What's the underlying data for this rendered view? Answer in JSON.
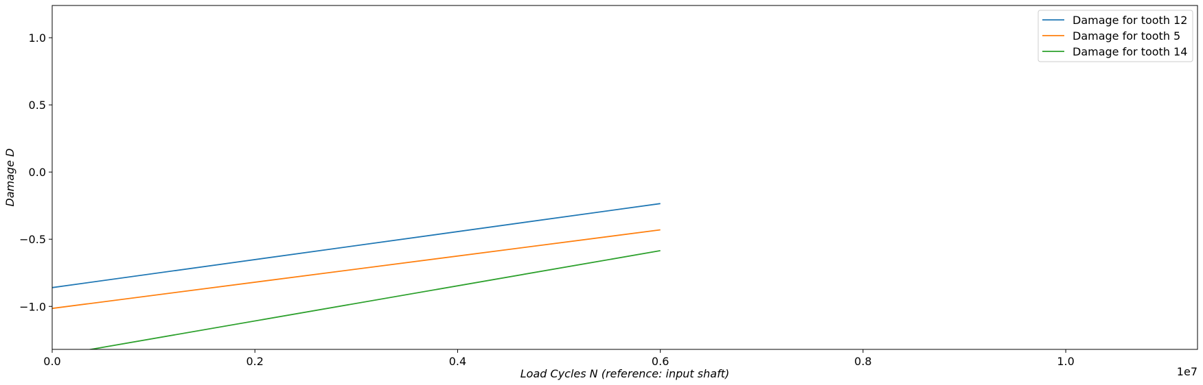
{
  "chart_data": {
    "type": "line",
    "title": "",
    "xlabel": "Load Cycles N (reference:  input shaft)",
    "ylabel": "Damage D",
    "x_offset_text": "1e7",
    "xlim": [
      0,
      11300000
    ],
    "ylim": [
      -1.32,
      1.24
    ],
    "x_ticks": [
      0,
      2000000,
      4000000,
      6000000,
      8000000,
      10000000
    ],
    "x_tick_labels": [
      "0.0",
      "0.2",
      "0.4",
      "0.6",
      "0.8",
      "1.0"
    ],
    "y_ticks": [
      1.0,
      0.5,
      0.0,
      -0.5,
      -1.0
    ],
    "y_tick_labels": [
      "1.0",
      "0.5",
      "0.0",
      "−0.5",
      "−1.0"
    ],
    "grid": false,
    "legend_position": "top-right",
    "series": [
      {
        "name": "Damage for tooth 12",
        "color": "#1f77b4",
        "x": [
          0,
          6000000
        ],
        "y": [
          -0.86,
          -0.235
        ]
      },
      {
        "name": "Damage for tooth 5",
        "color": "#ff7f0e",
        "x": [
          0,
          6000000
        ],
        "y": [
          -1.015,
          -0.43
        ]
      },
      {
        "name": "Damage for tooth 14",
        "color": "#2ca02c",
        "x": [
          0,
          6000000
        ],
        "y": [
          -1.37,
          -0.585
        ]
      }
    ]
  }
}
